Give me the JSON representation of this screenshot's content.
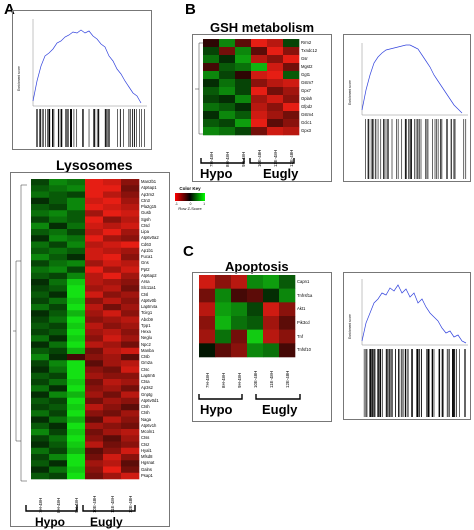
{
  "panels": {
    "A": {
      "letter": "A",
      "lysosomes": {
        "title": "Lysosomes",
        "genes": [
          "Man2b1",
          "Atp6ap1",
          "Ap3m2",
          "Ctn3",
          "Pla2g15",
          "Gusb",
          "Sgsh",
          "Ctsd",
          "Lipa",
          "Atp6v0a2",
          "Cd63",
          "Ap1b1",
          "Fuca1",
          "Gns",
          "Ppt2",
          "Atp6ap2",
          "Arsa",
          "Slc11a1",
          "Ctsl",
          "Atp6v0b",
          "Laptm4a",
          "Tcirg1",
          "Abcb9",
          "Tpp1",
          "Hexa",
          "Neglu",
          "Npc2",
          "Manba",
          "Ctsb",
          "Gm2a",
          "Ctsc",
          "Laptm5",
          "Ctsa",
          "Ap3s2",
          "Gnptg",
          "Atp6v0d1",
          "Ctsh",
          "Ctsh",
          "Naga",
          "Atp6v1h",
          "Mcoln1",
          "Ctss",
          "Ctsz",
          "Hyal1",
          "Mfsd8",
          "Hgsnat",
          "Galns",
          "Psap1"
        ],
        "samples": [
          "7H-48H",
          "8H-48H",
          "9H-48H",
          "10E-48H",
          "11E-48H",
          "12E-48H"
        ],
        "group_hypo": "Hypo",
        "group_eugly": "Eugly"
      },
      "enrichment_ylabel": "Enrichment score"
    },
    "B": {
      "letter": "B",
      "title": "GSH metabolism",
      "genes": [
        "Rrm2",
        "Txndc12",
        "Gsr",
        "Mgst2",
        "Ggt1",
        "Gstm7",
        "Gpx7",
        "Oplah",
        "Gfpdz",
        "Gstm4",
        "Gclc1",
        "Gpx3"
      ],
      "samples": [
        "7H-48H",
        "8H-48H",
        "9H-48H",
        "10E-48H",
        "11E-48H",
        "12E-48H"
      ],
      "group_hypo": "Hypo",
      "group_eugly": "Eugly",
      "enrichment_ylabel": "Enrichment score"
    },
    "C": {
      "letter": "C",
      "title": "Apoptosis",
      "genes": [
        "Capn1",
        "Tnfrsf1a",
        "Akt1",
        "Pik3cd",
        "Tnf",
        "Tnfsf10"
      ],
      "samples": [
        "7H-48H",
        "8H-48H",
        "9H-48H",
        "10E-48H",
        "11E-48H",
        "12E-48H"
      ],
      "group_hypo": "Hypo",
      "group_eugly": "Eugly",
      "enrichment_ylabel": "Enrichment score"
    }
  },
  "color_key": {
    "title": "Color Key",
    "label": "Row Z-Score",
    "ticks": [
      "-1",
      "0",
      "1"
    ],
    "low_color": "#ff0000",
    "mid_color": "#000000",
    "high_color": "#00ff00"
  },
  "colors": {
    "enrichment_line": "#3344dd",
    "red": "#e0201a",
    "green": "#22dd22"
  },
  "heatmaps": {
    "A": [
      [
        -0.3,
        -0.6,
        -0.5,
        1.2,
        0.9,
        0.6
      ],
      [
        -0.4,
        -0.5,
        -0.6,
        1.1,
        1.0,
        0.5
      ],
      [
        -0.5,
        -0.4,
        -0.3,
        1.0,
        0.8,
        0.6
      ],
      [
        -0.2,
        -0.4,
        -0.6,
        0.9,
        1.0,
        0.7
      ],
      [
        -0.4,
        -0.3,
        -0.6,
        1.0,
        0.9,
        0.8
      ],
      [
        -0.5,
        -0.6,
        -0.4,
        0.7,
        1.0,
        0.9
      ],
      [
        -0.3,
        -0.5,
        -0.4,
        1.1,
        0.6,
        0.8
      ],
      [
        -0.6,
        -0.2,
        -0.5,
        0.9,
        0.8,
        0.9
      ],
      [
        -0.4,
        -0.5,
        -0.3,
        0.8,
        1.1,
        0.7
      ],
      [
        -0.2,
        -0.6,
        -0.5,
        1.0,
        0.7,
        0.6
      ],
      [
        -0.5,
        -0.3,
        -0.6,
        0.8,
        0.9,
        1.0
      ],
      [
        -0.4,
        -0.5,
        -0.4,
        0.9,
        0.8,
        0.7
      ],
      [
        -0.6,
        -0.4,
        -0.2,
        0.9,
        1.0,
        0.6
      ],
      [
        -0.3,
        -0.5,
        -0.6,
        0.7,
        0.9,
        0.8
      ],
      [
        -0.5,
        -0.6,
        -0.3,
        1.0,
        0.7,
        0.9
      ],
      [
        -0.4,
        -0.3,
        -0.6,
        0.8,
        1.0,
        0.7
      ],
      [
        -0.2,
        -0.5,
        -0.9,
        0.8,
        0.7,
        0.6
      ],
      [
        -0.3,
        -0.4,
        -1.0,
        0.7,
        0.8,
        0.5
      ],
      [
        -0.4,
        -0.2,
        -1.1,
        0.9,
        0.6,
        0.7
      ],
      [
        -0.3,
        -0.5,
        -0.9,
        0.6,
        0.8,
        0.6
      ],
      [
        -0.5,
        -0.3,
        -1.0,
        0.8,
        0.5,
        0.7
      ],
      [
        -0.2,
        -0.4,
        -0.8,
        0.7,
        0.9,
        0.6
      ],
      [
        -0.3,
        -0.5,
        -1.0,
        0.6,
        0.7,
        0.8
      ],
      [
        -0.4,
        -0.3,
        -0.9,
        0.8,
        0.6,
        0.7
      ],
      [
        -0.3,
        -0.4,
        -1.1,
        0.7,
        0.8,
        0.6
      ],
      [
        -0.5,
        -0.2,
        -0.9,
        0.6,
        0.9,
        0.7
      ],
      [
        -0.2,
        -0.5,
        -1.0,
        0.8,
        0.7,
        0.5
      ],
      [
        -0.4,
        -0.3,
        -0.8,
        0.5,
        0.8,
        0.9
      ],
      [
        -0.6,
        -0.2,
        0.3,
        0.6,
        0.7,
        0.4
      ],
      [
        -0.3,
        -0.6,
        -1.0,
        0.4,
        0.7,
        0.8
      ],
      [
        -0.2,
        -0.5,
        -1.1,
        0.6,
        0.5,
        0.9
      ],
      [
        -0.4,
        -0.3,
        -1.0,
        0.7,
        0.6,
        0.6
      ],
      [
        -0.3,
        -0.5,
        -0.9,
        0.5,
        0.8,
        0.7
      ],
      [
        -0.5,
        -0.2,
        -1.0,
        0.6,
        0.7,
        0.5
      ],
      [
        -0.2,
        -0.6,
        -0.8,
        0.7,
        0.5,
        0.8
      ],
      [
        -0.4,
        -0.3,
        -1.1,
        0.5,
        0.7,
        0.6
      ],
      [
        -0.3,
        -0.4,
        -0.9,
        0.8,
        0.6,
        0.4
      ],
      [
        -0.5,
        -0.3,
        -1.0,
        0.6,
        0.5,
        0.7
      ],
      [
        -0.2,
        -0.5,
        -0.8,
        0.4,
        0.8,
        0.6
      ],
      [
        -0.4,
        -0.2,
        -1.0,
        0.7,
        0.6,
        0.5
      ],
      [
        -0.6,
        -0.3,
        -0.9,
        0.5,
        0.7,
        0.8
      ],
      [
        -0.3,
        -0.5,
        -1.1,
        0.6,
        0.4,
        0.7
      ],
      [
        -0.2,
        -0.4,
        -0.9,
        0.8,
        0.5,
        0.6
      ],
      [
        -0.5,
        -0.3,
        -0.8,
        0.4,
        0.6,
        0.9
      ],
      [
        -0.3,
        -0.6,
        -1.0,
        0.5,
        0.9,
        0.6
      ],
      [
        -0.4,
        -0.2,
        -1.1,
        0.7,
        0.8,
        0.4
      ],
      [
        -0.2,
        -0.5,
        -0.9,
        0.6,
        1.0,
        0.5
      ],
      [
        -0.4,
        -0.3,
        -1.0,
        0.5,
        0.7,
        0.9
      ]
    ],
    "B": [
      [
        0.2,
        -0.6,
        0.4,
        1.0,
        0.8,
        -0.3
      ],
      [
        -0.3,
        0.5,
        -0.6,
        0.4,
        1.0,
        0.6
      ],
      [
        -0.5,
        -0.2,
        -0.7,
        0.8,
        0.6,
        1.0
      ],
      [
        0.3,
        -0.4,
        -0.5,
        -0.8,
        0.9,
        0.5
      ],
      [
        -0.6,
        -0.3,
        0.2,
        0.9,
        1.0,
        -0.4
      ],
      [
        -0.2,
        -0.5,
        -0.3,
        0.6,
        0.8,
        0.9
      ],
      [
        -0.4,
        -0.6,
        -0.3,
        1.0,
        0.5,
        0.7
      ],
      [
        -0.3,
        -0.2,
        -0.6,
        0.7,
        0.9,
        0.6
      ],
      [
        -0.5,
        -0.4,
        -0.2,
        0.8,
        0.6,
        1.0
      ],
      [
        -0.2,
        -0.6,
        -0.4,
        0.9,
        0.7,
        0.5
      ],
      [
        -0.4,
        -0.3,
        -0.7,
        1.0,
        0.4,
        0.6
      ],
      [
        -0.6,
        -0.5,
        -0.3,
        0.5,
        0.9,
        0.8
      ]
    ],
    "C": [
      [
        0.9,
        0.6,
        0.8,
        -0.6,
        -0.7,
        -0.4
      ],
      [
        0.5,
        -0.6,
        0.3,
        0.4,
        -0.2,
        -0.6
      ],
      [
        0.8,
        -0.7,
        -0.6,
        -0.3,
        0.9,
        0.6
      ],
      [
        0.6,
        -0.8,
        -0.5,
        -0.4,
        0.7,
        0.4
      ],
      [
        0.7,
        -0.5,
        0.5,
        -0.9,
        0.8,
        0.6
      ],
      [
        -0.1,
        0.4,
        0.6,
        -0.6,
        -0.5,
        0.3
      ]
    ]
  }
}
